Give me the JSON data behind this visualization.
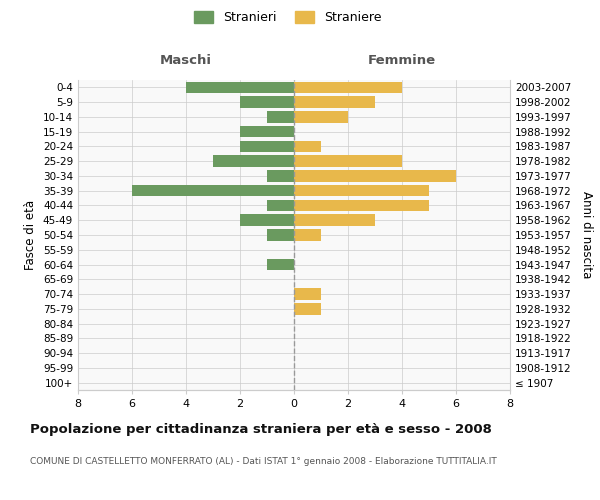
{
  "age_groups": [
    "100+",
    "95-99",
    "90-94",
    "85-89",
    "80-84",
    "75-79",
    "70-74",
    "65-69",
    "60-64",
    "55-59",
    "50-54",
    "45-49",
    "40-44",
    "35-39",
    "30-34",
    "25-29",
    "20-24",
    "15-19",
    "10-14",
    "5-9",
    "0-4"
  ],
  "birth_years": [
    "≤ 1907",
    "1908-1912",
    "1913-1917",
    "1918-1922",
    "1923-1927",
    "1928-1932",
    "1933-1937",
    "1938-1942",
    "1943-1947",
    "1948-1952",
    "1953-1957",
    "1958-1962",
    "1963-1967",
    "1968-1972",
    "1973-1977",
    "1978-1982",
    "1983-1987",
    "1988-1992",
    "1993-1997",
    "1998-2002",
    "2003-2007"
  ],
  "males": [
    0,
    0,
    0,
    0,
    0,
    0,
    0,
    0,
    1,
    0,
    1,
    2,
    1,
    6,
    1,
    3,
    2,
    2,
    1,
    2,
    4
  ],
  "females": [
    0,
    0,
    0,
    0,
    0,
    1,
    1,
    0,
    0,
    0,
    1,
    3,
    5,
    5,
    6,
    4,
    1,
    0,
    2,
    3,
    4
  ],
  "male_color": "#6a9a5f",
  "female_color": "#e8b84b",
  "grid_color": "#cccccc",
  "center_line_color": "#999999",
  "title": "Popolazione per cittadinanza straniera per età e sesso - 2008",
  "subtitle": "COMUNE DI CASTELLETTO MONFERRATO (AL) - Dati ISTAT 1° gennaio 2008 - Elaborazione TUTTITALIA.IT",
  "xlabel_left": "Maschi",
  "xlabel_right": "Femmine",
  "ylabel_left": "Fasce di età",
  "ylabel_right": "Anni di nascita",
  "legend_male": "Stranieri",
  "legend_female": "Straniere",
  "xlim": 8,
  "bg_color": "#ffffff",
  "plot_bg_color": "#f9f9f9"
}
